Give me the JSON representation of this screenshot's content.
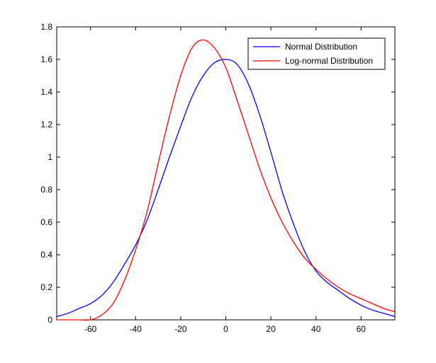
{
  "chart_data": {
    "type": "line",
    "title": "",
    "xlabel": "",
    "ylabel": "",
    "xlim": [
      -75,
      75
    ],
    "ylim": [
      0,
      1.8
    ],
    "xticks": [
      -60,
      -40,
      -20,
      0,
      20,
      40,
      60
    ],
    "xtick_labels": [
      "-60",
      "-40",
      "-20",
      "0",
      "20",
      "40",
      "60"
    ],
    "yticks": [
      0,
      0.2,
      0.4,
      0.6,
      0.8,
      1.0,
      1.2,
      1.4,
      1.6,
      1.8
    ],
    "ytick_labels": [
      "0",
      "0.2",
      "0.4",
      "0.6",
      "0.8",
      "1",
      "1.2",
      "1.4",
      "1.6",
      "1.8"
    ],
    "grid": false,
    "legend_position": "top-right",
    "series": [
      {
        "name": "Normal Distribution",
        "color": "#0000ff",
        "x": [
          -75,
          -70,
          -65,
          -60,
          -55,
          -50,
          -45,
          -40,
          -35,
          -30,
          -25,
          -20,
          -15,
          -10,
          -5,
          0,
          5,
          10,
          15,
          20,
          25,
          30,
          35,
          40,
          45,
          50,
          55,
          60,
          65,
          70,
          75
        ],
        "y": [
          0.02,
          0.04,
          0.07,
          0.1,
          0.15,
          0.23,
          0.34,
          0.46,
          0.61,
          0.8,
          1.0,
          1.19,
          1.37,
          1.5,
          1.58,
          1.6,
          1.57,
          1.45,
          1.26,
          1.03,
          0.79,
          0.59,
          0.42,
          0.3,
          0.23,
          0.18,
          0.13,
          0.09,
          0.06,
          0.04,
          0.02
        ]
      },
      {
        "name": "Log-normal Distribution",
        "color": "#ff0000",
        "x": [
          -75,
          -70,
          -65,
          -60,
          -55,
          -50,
          -45,
          -40,
          -35,
          -30,
          -25,
          -20,
          -15,
          -10,
          -5,
          0,
          5,
          10,
          15,
          20,
          25,
          30,
          35,
          40,
          45,
          50,
          55,
          60,
          65,
          70,
          75
        ],
        "y": [
          0.0,
          0.0,
          0.0,
          0.0,
          0.03,
          0.1,
          0.24,
          0.43,
          0.66,
          0.96,
          1.25,
          1.5,
          1.67,
          1.72,
          1.67,
          1.55,
          1.35,
          1.14,
          0.93,
          0.75,
          0.6,
          0.48,
          0.38,
          0.31,
          0.25,
          0.2,
          0.16,
          0.13,
          0.1,
          0.07,
          0.05
        ]
      }
    ]
  }
}
